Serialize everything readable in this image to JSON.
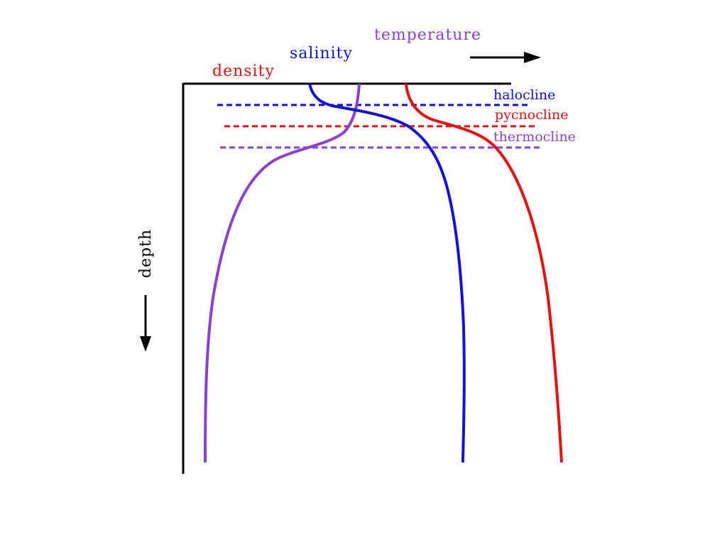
{
  "labels": {
    "temperature": "temperature",
    "salinity": "salinity",
    "density": "density",
    "depth": "depth",
    "halocline": "halocline",
    "pycnocline": "pycnocline",
    "thermocline": "thermocline"
  },
  "colors": {
    "temperature": "#8b3fd6",
    "salinity": "#1010e0",
    "density": "#e81010",
    "axis": "#000000"
  }
}
